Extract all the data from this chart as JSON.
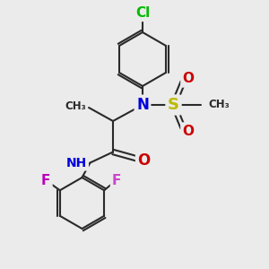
{
  "bg_color": "#ebebeb",
  "bond_color": "#2a2a2a",
  "bond_width": 1.5,
  "atom_colors": {
    "Cl": "#00bb00",
    "N": "#0000dd",
    "O": "#cc0000",
    "S": "#bbbb00",
    "F_left": "#bb00bb",
    "F_right": "#cc44cc",
    "H": "#448888",
    "C": "#2a2a2a"
  },
  "figsize": [
    3.0,
    3.0
  ],
  "dpi": 100,
  "xlim": [
    0,
    10
  ],
  "ylim": [
    0,
    10
  ]
}
